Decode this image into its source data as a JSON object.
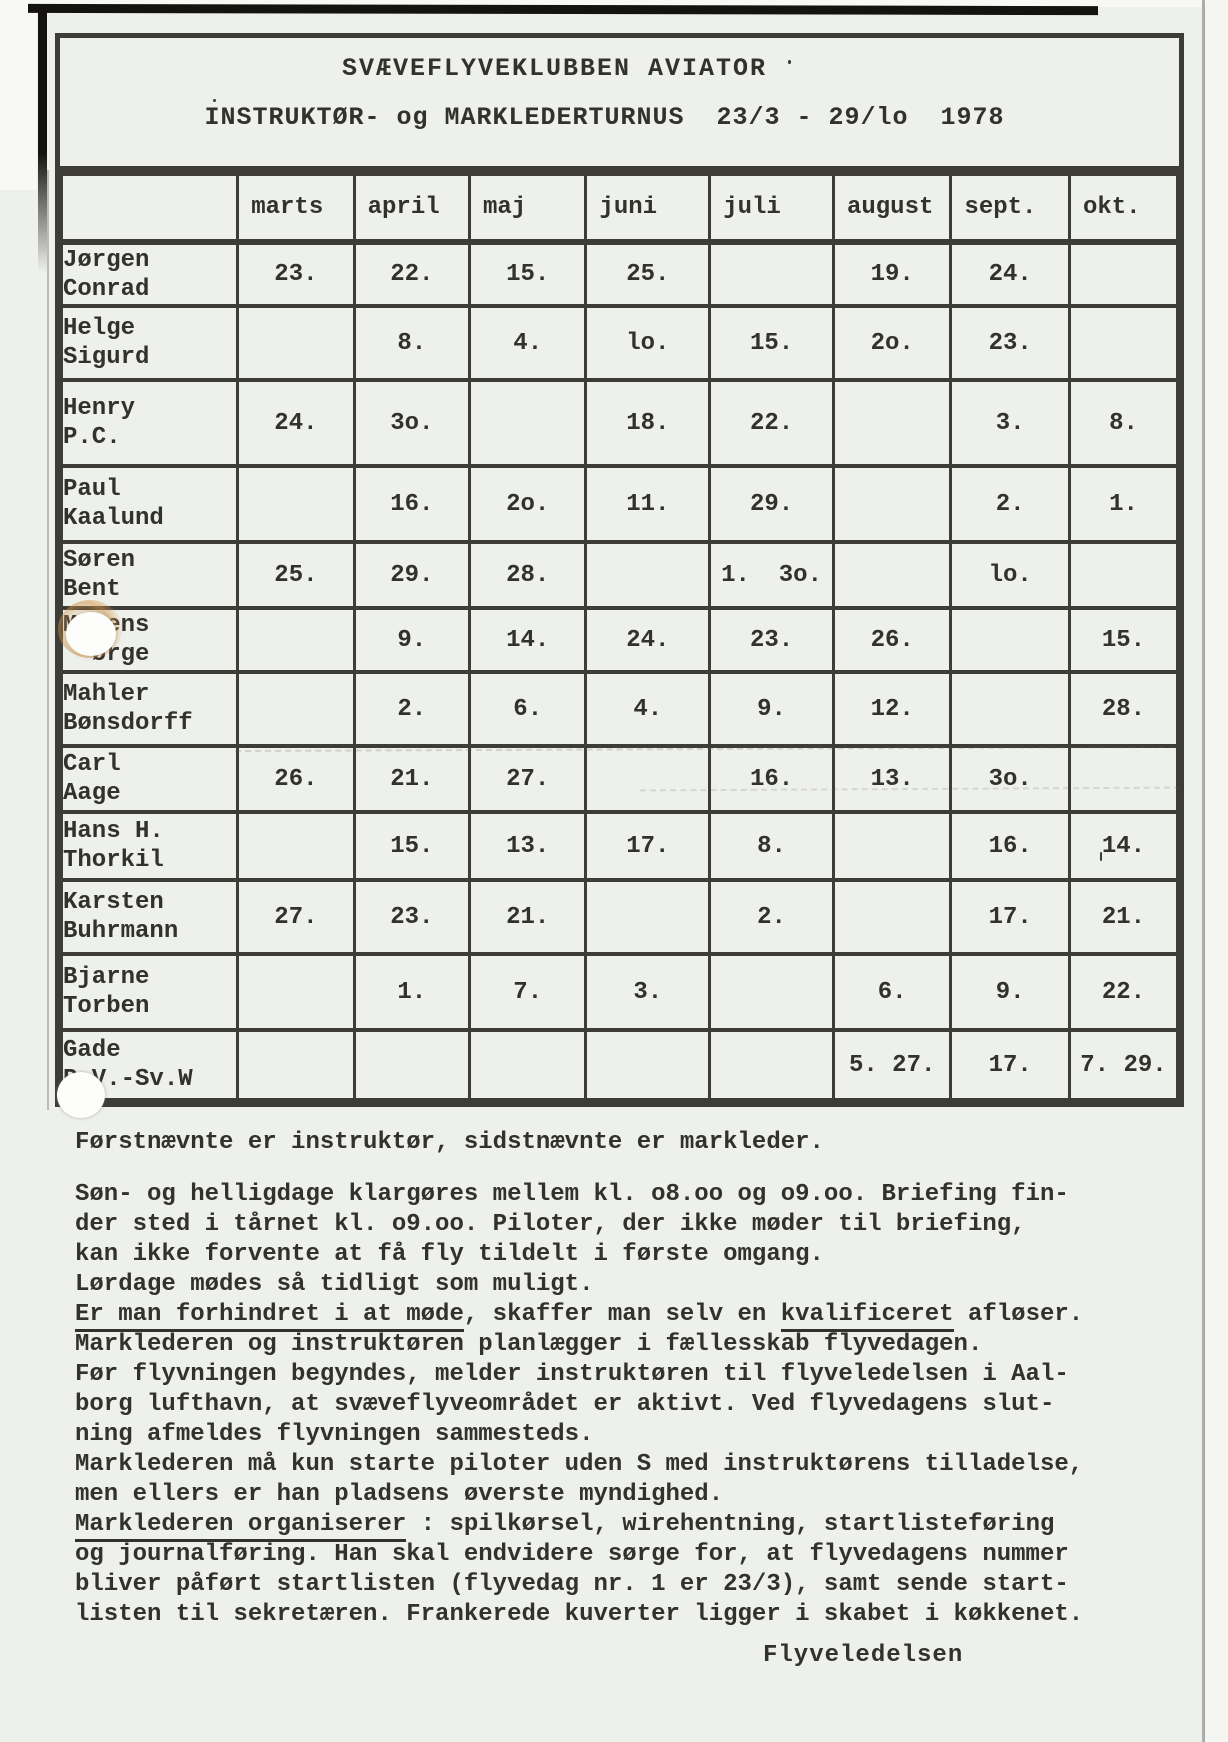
{
  "header": {
    "club": "SVÆVEFLYVEKLUBBEN AVIATOR",
    "subtitle": "INSTRUKTØR- og MARKLEDERTURNUS  23/3 - 29/lo  1978"
  },
  "table": {
    "columns": [
      "marts",
      "april",
      "maj",
      "juni",
      "juli",
      "august",
      "sept.",
      "okt."
    ],
    "rows": [
      {
        "name1": "Jørgen",
        "name2": "Conrad",
        "values": [
          "23.",
          "22.",
          "15.",
          "25.",
          "",
          "19.",
          "24.",
          ""
        ]
      },
      {
        "name1": "Helge",
        "name2": "Sigurd",
        "values": [
          "",
          "8.",
          "4.",
          "lo.",
          "15.",
          "2o.",
          "23.",
          ""
        ]
      },
      {
        "name1": "Henry",
        "name2": "P.C.",
        "values": [
          "24.",
          "3o.",
          "",
          "18.",
          "22.",
          "",
          "3.",
          "8."
        ]
      },
      {
        "name1": "Paul",
        "name2": "Kaalund",
        "values": [
          "",
          "16.",
          "2o.",
          "11.",
          "29.",
          "",
          "2.",
          "1."
        ]
      },
      {
        "name1": "Søren",
        "name2": "Bent",
        "values": [
          "25.",
          "29.",
          "28.",
          "",
          "1.  3o.",
          "",
          "lo.",
          ""
        ]
      },
      {
        "name1": "Mogens",
        "name2": "  ørge",
        "values": [
          "",
          "9.",
          "14.",
          "24.",
          "23.",
          "26.",
          "",
          "15."
        ]
      },
      {
        "name1": "Mahler",
        "name2": "Bønsdorff",
        "values": [
          "",
          "2.",
          "6.",
          "4.",
          "9.",
          "12.",
          "",
          "28."
        ]
      },
      {
        "name1": "Carl",
        "name2": "Aage",
        "values": [
          "26.",
          "21.",
          "27.",
          "",
          "16.",
          "13.",
          "3o.",
          ""
        ]
      },
      {
        "name1": "Hans H.",
        "name2": "Thorkil",
        "values": [
          "",
          "15.",
          "13.",
          "17.",
          "8.",
          "",
          "16.",
          "14."
        ]
      },
      {
        "name1": "Karsten",
        "name2": "Buhrmann",
        "values": [
          "27.",
          "23.",
          "21.",
          "",
          "2.",
          "",
          "17.",
          "21."
        ]
      },
      {
        "name1": "Bjarne",
        "name2": "Torben",
        "values": [
          "",
          "1.",
          "7.",
          "3.",
          "",
          "6.",
          "9.",
          "22."
        ]
      },
      {
        "name1": "Gade",
        "name2": "P.V.-Sv.W",
        "values": [
          "",
          "",
          "",
          "",
          "",
          "5. 27.",
          "17.",
          "7. 29."
        ]
      }
    ]
  },
  "notes": {
    "intro": "Førstnævnte er instruktør, sidstnævnte er markleder.",
    "lines": [
      {
        "segments": [
          {
            "text": "Søn- og helligdage klargøres mellem kl. o8.oo og o9.oo. Briefing fin-",
            "underline": false
          }
        ]
      },
      {
        "segments": [
          {
            "text": "der sted i tårnet kl. o9.oo. Piloter, der ikke møder til briefing,",
            "underline": false
          }
        ]
      },
      {
        "segments": [
          {
            "text": "kan ikke forvente at få fly tildelt i første omgang.",
            "underline": false
          }
        ]
      },
      {
        "segments": [
          {
            "text": "Lørdage mødes så tidligt som muligt.",
            "underline": false
          }
        ]
      },
      {
        "segments": [
          {
            "text": "Er man forhindret i at møde",
            "underline": true
          },
          {
            "text": ", skaffer man selv en ",
            "underline": false
          },
          {
            "text": "kvalificeret",
            "underline": true
          },
          {
            "text": " afløser.",
            "underline": false
          }
        ]
      },
      {
        "segments": [
          {
            "text": "Marklederen og instruktøren planlægger i fællesskab flyvedagen.",
            "underline": false
          }
        ]
      },
      {
        "segments": [
          {
            "text": "Før flyvningen begyndes, melder instruktøren til flyveledelsen i Aal-",
            "underline": false
          }
        ]
      },
      {
        "segments": [
          {
            "text": "borg lufthavn, at svæveflyveområdet er aktivt. Ved flyvedagens slut-",
            "underline": false
          }
        ]
      },
      {
        "segments": [
          {
            "text": "ning afmeldes flyvningen sammesteds.",
            "underline": false
          }
        ]
      },
      {
        "segments": [
          {
            "text": "Marklederen må kun starte piloter uden S med instruktørens tilladelse,",
            "underline": false
          }
        ]
      },
      {
        "segments": [
          {
            "text": "men ellers er han pladsens øverste myndighed.",
            "underline": false
          }
        ]
      },
      {
        "segments": [
          {
            "text": "Marklederen organiserer",
            "underline": true
          },
          {
            "text": " : spilkørsel, wirehentning, startlisteføring",
            "underline": false
          }
        ]
      },
      {
        "segments": [
          {
            "text": "og journalføring. Han skal endvidere sørge for, at flyvedagens nummer",
            "underline": false
          }
        ]
      },
      {
        "segments": [
          {
            "text": "bliver påført startlisten (flyvedag nr. 1 er 23/3), samt sende start-",
            "underline": false
          }
        ]
      },
      {
        "segments": [
          {
            "text": "listen til sekretæren. Frankerede kuverter ligger i skabet i køkkenet.",
            "underline": false
          }
        ]
      }
    ]
  },
  "signature": "Flyveledelsen",
  "colors": {
    "paper": "#eef0eb",
    "ink": "#33312c",
    "table_line": "#3e3c36",
    "scan_edge": "#141310",
    "punch_ring": "#d1944a"
  }
}
